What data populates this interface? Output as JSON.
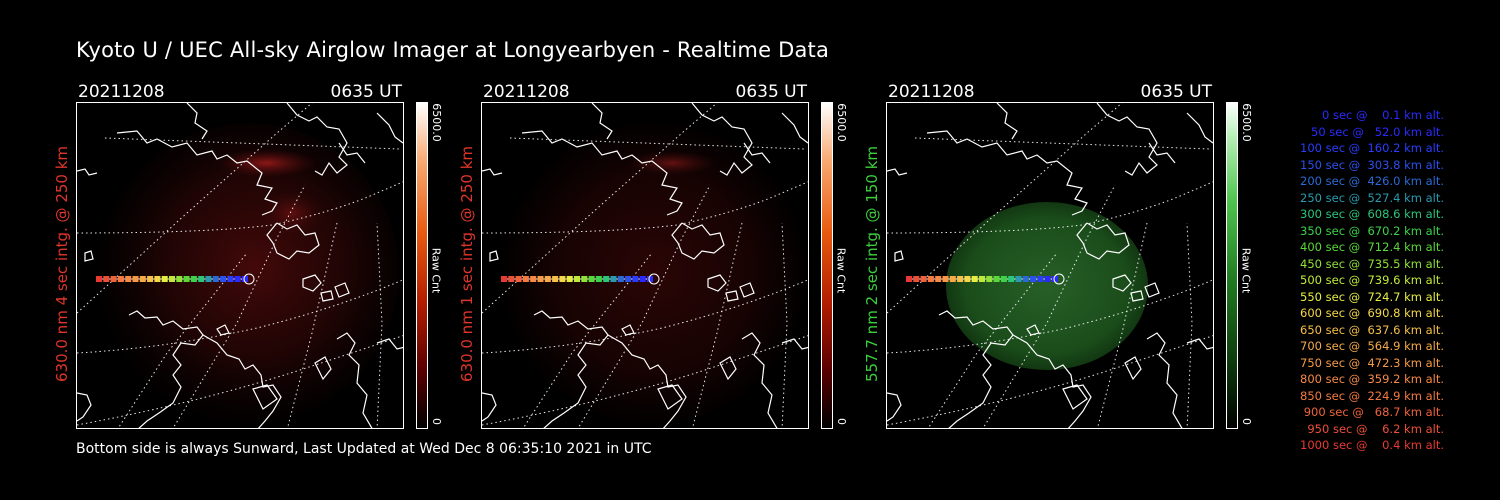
{
  "title": "Kyoto U / UEC All-sky Airglow Imager at Longyearbyen - Realtime Data",
  "footer": "Bottom side is always Sunward, Last Updated at Wed Dec  8 06:35:10 2021 in UTC",
  "colors": {
    "red_label": "#e0352a",
    "green_label": "#3ccf3c"
  },
  "panels": [
    {
      "date": "20211208",
      "time": "0635 UT",
      "side_label": "630.0 nm 4 sec intg. @ 250 km",
      "label_color": "#e0352a",
      "colorbar_max": "6500.0",
      "colorbar_min": "0",
      "colorbar_unit": "Raw Cnt",
      "colormap": "red"
    },
    {
      "date": "20211208",
      "time": "0635 UT",
      "side_label": "630.0 nm 1 sec intg. @ 250 km",
      "label_color": "#e0352a",
      "colorbar_max": "6500.0",
      "colorbar_min": "0",
      "colorbar_unit": "Raw Cnt",
      "colormap": "red"
    },
    {
      "date": "20211208",
      "time": "0635 UT",
      "side_label": "557.7 nm 2 sec intg. @ 150 km",
      "label_color": "#3ccf3c",
      "colorbar_max": "6500.0",
      "colorbar_min": "0",
      "colorbar_unit": "Raw Cnt",
      "colormap": "green"
    }
  ],
  "legend": [
    {
      "text": "0 sec @    0.1 km alt.",
      "color": "#2a2aff"
    },
    {
      "text": "50 sec @   52.0 km alt.",
      "color": "#2a2aff"
    },
    {
      "text": "100 sec @  160.2 km alt.",
      "color": "#2a3dff"
    },
    {
      "text": "150 sec @  303.8 km alt.",
      "color": "#2a50ee"
    },
    {
      "text": "200 sec @  426.0 km alt.",
      "color": "#2a6ad6"
    },
    {
      "text": "250 sec @  527.4 km alt.",
      "color": "#2a9ab0"
    },
    {
      "text": "300 sec @  608.6 km alt.",
      "color": "#2ac67a"
    },
    {
      "text": "350 sec @  670.2 km alt.",
      "color": "#3ad34a"
    },
    {
      "text": "400 sec @  712.4 km alt.",
      "color": "#5ad83a"
    },
    {
      "text": "450 sec @  735.5 km alt.",
      "color": "#8ee23a"
    },
    {
      "text": "500 sec @  739.6 km alt.",
      "color": "#c0ea3a"
    },
    {
      "text": "550 sec @  724.7 km alt.",
      "color": "#e6ee44"
    },
    {
      "text": "600 sec @  690.8 km alt.",
      "color": "#f4d84a"
    },
    {
      "text": "650 sec @  637.6 km alt.",
      "color": "#f6c04a"
    },
    {
      "text": "700 sec @  564.9 km alt.",
      "color": "#f6aa48"
    },
    {
      "text": "750 sec @  472.3 km alt.",
      "color": "#f69a48"
    },
    {
      "text": "800 sec @  359.2 km alt.",
      "color": "#f68a46"
    },
    {
      "text": "850 sec @  224.9 km alt.",
      "color": "#f47a42"
    },
    {
      "text": "900 sec @   68.7 km alt.",
      "color": "#f0623c"
    },
    {
      "text": "950 sec @    6.2 km alt.",
      "color": "#ec5038"
    },
    {
      "text": "1000 sec @    0.4 km alt.",
      "color": "#e83a32"
    }
  ]
}
